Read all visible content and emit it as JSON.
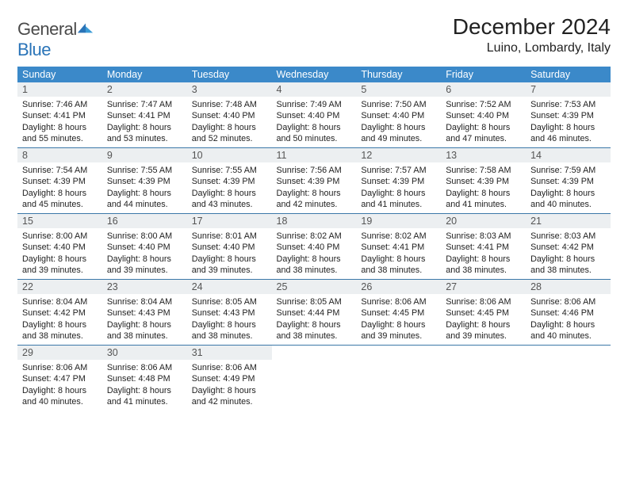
{
  "brand": {
    "name_a": "General",
    "name_b": "Blue"
  },
  "header": {
    "title": "December 2024",
    "location": "Luino, Lombardy, Italy"
  },
  "style": {
    "header_bg": "#3b89c9",
    "header_fg": "#ffffff",
    "daynum_bg": "#eceff1",
    "rule_color": "#3b78a8",
    "title_fontsize_pt": 21,
    "loc_fontsize_pt": 12,
    "cell_fontsize_pt": 8,
    "logo_color": "#2a74b8"
  },
  "calendar": {
    "type": "table",
    "columns": [
      "Sunday",
      "Monday",
      "Tuesday",
      "Wednesday",
      "Thursday",
      "Friday",
      "Saturday"
    ],
    "weeks": [
      [
        {
          "n": "1",
          "sr": "7:46 AM",
          "ss": "4:41 PM",
          "dl": "8 hours and 55 minutes."
        },
        {
          "n": "2",
          "sr": "7:47 AM",
          "ss": "4:41 PM",
          "dl": "8 hours and 53 minutes."
        },
        {
          "n": "3",
          "sr": "7:48 AM",
          "ss": "4:40 PM",
          "dl": "8 hours and 52 minutes."
        },
        {
          "n": "4",
          "sr": "7:49 AM",
          "ss": "4:40 PM",
          "dl": "8 hours and 50 minutes."
        },
        {
          "n": "5",
          "sr": "7:50 AM",
          "ss": "4:40 PM",
          "dl": "8 hours and 49 minutes."
        },
        {
          "n": "6",
          "sr": "7:52 AM",
          "ss": "4:40 PM",
          "dl": "8 hours and 47 minutes."
        },
        {
          "n": "7",
          "sr": "7:53 AM",
          "ss": "4:39 PM",
          "dl": "8 hours and 46 minutes."
        }
      ],
      [
        {
          "n": "8",
          "sr": "7:54 AM",
          "ss": "4:39 PM",
          "dl": "8 hours and 45 minutes."
        },
        {
          "n": "9",
          "sr": "7:55 AM",
          "ss": "4:39 PM",
          "dl": "8 hours and 44 minutes."
        },
        {
          "n": "10",
          "sr": "7:55 AM",
          "ss": "4:39 PM",
          "dl": "8 hours and 43 minutes."
        },
        {
          "n": "11",
          "sr": "7:56 AM",
          "ss": "4:39 PM",
          "dl": "8 hours and 42 minutes."
        },
        {
          "n": "12",
          "sr": "7:57 AM",
          "ss": "4:39 PM",
          "dl": "8 hours and 41 minutes."
        },
        {
          "n": "13",
          "sr": "7:58 AM",
          "ss": "4:39 PM",
          "dl": "8 hours and 41 minutes."
        },
        {
          "n": "14",
          "sr": "7:59 AM",
          "ss": "4:39 PM",
          "dl": "8 hours and 40 minutes."
        }
      ],
      [
        {
          "n": "15",
          "sr": "8:00 AM",
          "ss": "4:40 PM",
          "dl": "8 hours and 39 minutes."
        },
        {
          "n": "16",
          "sr": "8:00 AM",
          "ss": "4:40 PM",
          "dl": "8 hours and 39 minutes."
        },
        {
          "n": "17",
          "sr": "8:01 AM",
          "ss": "4:40 PM",
          "dl": "8 hours and 39 minutes."
        },
        {
          "n": "18",
          "sr": "8:02 AM",
          "ss": "4:40 PM",
          "dl": "8 hours and 38 minutes."
        },
        {
          "n": "19",
          "sr": "8:02 AM",
          "ss": "4:41 PM",
          "dl": "8 hours and 38 minutes."
        },
        {
          "n": "20",
          "sr": "8:03 AM",
          "ss": "4:41 PM",
          "dl": "8 hours and 38 minutes."
        },
        {
          "n": "21",
          "sr": "8:03 AM",
          "ss": "4:42 PM",
          "dl": "8 hours and 38 minutes."
        }
      ],
      [
        {
          "n": "22",
          "sr": "8:04 AM",
          "ss": "4:42 PM",
          "dl": "8 hours and 38 minutes."
        },
        {
          "n": "23",
          "sr": "8:04 AM",
          "ss": "4:43 PM",
          "dl": "8 hours and 38 minutes."
        },
        {
          "n": "24",
          "sr": "8:05 AM",
          "ss": "4:43 PM",
          "dl": "8 hours and 38 minutes."
        },
        {
          "n": "25",
          "sr": "8:05 AM",
          "ss": "4:44 PM",
          "dl": "8 hours and 38 minutes."
        },
        {
          "n": "26",
          "sr": "8:06 AM",
          "ss": "4:45 PM",
          "dl": "8 hours and 39 minutes."
        },
        {
          "n": "27",
          "sr": "8:06 AM",
          "ss": "4:45 PM",
          "dl": "8 hours and 39 minutes."
        },
        {
          "n": "28",
          "sr": "8:06 AM",
          "ss": "4:46 PM",
          "dl": "8 hours and 40 minutes."
        }
      ],
      [
        {
          "n": "29",
          "sr": "8:06 AM",
          "ss": "4:47 PM",
          "dl": "8 hours and 40 minutes."
        },
        {
          "n": "30",
          "sr": "8:06 AM",
          "ss": "4:48 PM",
          "dl": "8 hours and 41 minutes."
        },
        {
          "n": "31",
          "sr": "8:06 AM",
          "ss": "4:49 PM",
          "dl": "8 hours and 42 minutes."
        },
        null,
        null,
        null,
        null
      ]
    ],
    "labels": {
      "sunrise": "Sunrise: ",
      "sunset": "Sunset: ",
      "daylight": "Daylight: "
    }
  }
}
